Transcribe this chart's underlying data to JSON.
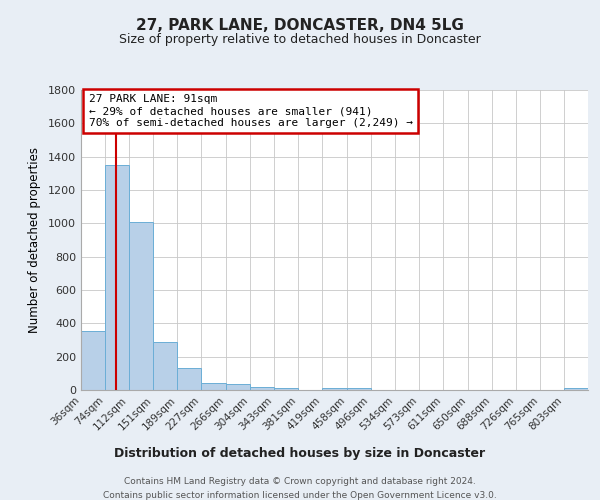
{
  "title": "27, PARK LANE, DONCASTER, DN4 5LG",
  "subtitle": "Size of property relative to detached houses in Doncaster",
  "xlabel": "Distribution of detached houses by size in Doncaster",
  "ylabel": "Number of detached properties",
  "bin_labels": [
    "36sqm",
    "74sqm",
    "112sqm",
    "151sqm",
    "189sqm",
    "227sqm",
    "266sqm",
    "304sqm",
    "343sqm",
    "381sqm",
    "419sqm",
    "458sqm",
    "496sqm",
    "534sqm",
    "573sqm",
    "611sqm",
    "650sqm",
    "688sqm",
    "726sqm",
    "765sqm",
    "803sqm"
  ],
  "bar_values": [
    355,
    1350,
    1010,
    290,
    130,
    40,
    35,
    20,
    15,
    0,
    15,
    10,
    0,
    0,
    0,
    0,
    0,
    0,
    0,
    0,
    10
  ],
  "bin_edges": [
    36,
    74,
    112,
    151,
    189,
    227,
    266,
    304,
    343,
    381,
    419,
    458,
    496,
    534,
    573,
    611,
    650,
    688,
    726,
    765,
    803,
    841
  ],
  "bar_color": "#b8d0e8",
  "bar_edgecolor": "#6baed6",
  "ylim": [
    0,
    1800
  ],
  "yticks": [
    0,
    200,
    400,
    600,
    800,
    1000,
    1200,
    1400,
    1600,
    1800
  ],
  "property_line_x": 91,
  "property_line_label": "27 PARK LANE: 91sqm",
  "annotation_line1": "← 29% of detached houses are smaller (941)",
  "annotation_line2": "70% of semi-detached houses are larger (2,249) →",
  "annotation_box_edgecolor": "#cc0000",
  "vline_color": "#cc0000",
  "footer_line1": "Contains HM Land Registry data © Crown copyright and database right 2024.",
  "footer_line2": "Contains public sector information licensed under the Open Government Licence v3.0.",
  "background_color": "#e8eef5",
  "plot_background": "#ffffff",
  "grid_color": "#c8c8c8"
}
